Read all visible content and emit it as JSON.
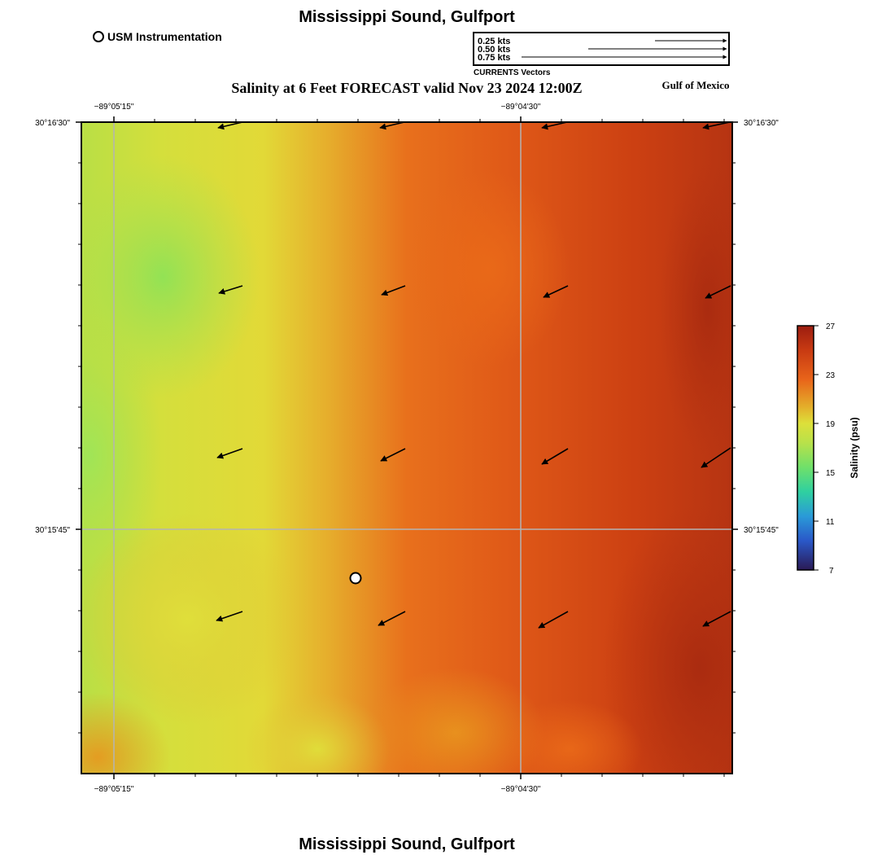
{
  "header": {
    "title": "Mississippi Sound, Gulfport",
    "subtitle": "Salinity at 6 Feet FORECAST valid Nov 23 2024 12:00Z",
    "region_label": "Gulf of Mexico",
    "footer_title": "Mississippi Sound, Gulfport"
  },
  "legend": {
    "station_label": "USM Instrumentation",
    "vectors": [
      "0.25 kts",
      "0.50 kts",
      "0.75 kts"
    ],
    "vectors_caption": "CURRENTS Vectors"
  },
  "axes": {
    "lon_ticks": [
      "−89°05'15\"",
      "−89°04'30\""
    ],
    "lat_ticks": [
      "30°16'30\"",
      "30°15'45\""
    ]
  },
  "colorbar": {
    "label": "Salinity (psu)",
    "ticks": [
      "27",
      "23",
      "19",
      "15",
      "11",
      "7"
    ],
    "colors": [
      "#9b1d10",
      "#c83a12",
      "#e8641a",
      "#e4ad2a",
      "#dde03a",
      "#b8e14a",
      "#6fe06a",
      "#2fd0a0",
      "#2a9ad8",
      "#2a58c8",
      "#2a1a55"
    ]
  },
  "currents": {
    "direction": "southwest",
    "rows": 4,
    "cols": 4
  },
  "station": {
    "name": "USM Instrumentation"
  }
}
